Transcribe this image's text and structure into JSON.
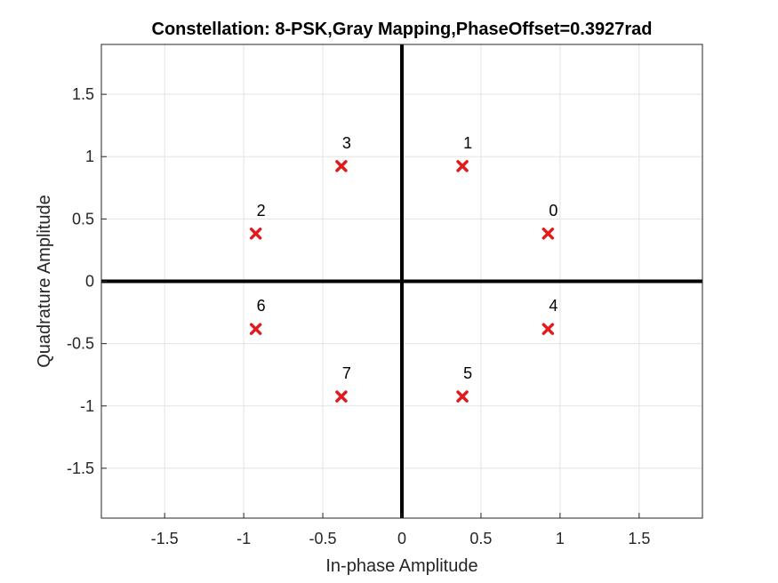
{
  "chart_data": {
    "type": "scatter",
    "title": "Constellation: 8-PSK,Gray Mapping,PhaseOffset=0.3927rad",
    "xlabel": "In-phase Amplitude",
    "ylabel": "Quadrature Amplitude",
    "xlim": [
      -1.9,
      1.9
    ],
    "ylim": [
      -1.9,
      1.9
    ],
    "xticks": [
      -1.5,
      -1,
      -0.5,
      0,
      0.5,
      1,
      1.5
    ],
    "yticks": [
      -1.5,
      -1,
      -0.5,
      0,
      0.5,
      1,
      1.5
    ],
    "xtick_labels": [
      "-1.5",
      "-1",
      "-0.5",
      "0",
      "0.5",
      "1",
      "1.5"
    ],
    "ytick_labels": [
      "-1.5",
      "-1",
      "-0.5",
      "0",
      "0.5",
      "1",
      "1.5"
    ],
    "grid": true,
    "marker": "x",
    "marker_color": "#e31a1c",
    "axis_line_color": "#000000",
    "points": [
      {
        "label": "0",
        "x": 0.9239,
        "y": 0.3827
      },
      {
        "label": "1",
        "x": 0.3827,
        "y": 0.9239
      },
      {
        "label": "3",
        "x": -0.3827,
        "y": 0.9239
      },
      {
        "label": "2",
        "x": -0.9239,
        "y": 0.3827
      },
      {
        "label": "6",
        "x": -0.9239,
        "y": -0.3827
      },
      {
        "label": "7",
        "x": -0.3827,
        "y": -0.9239
      },
      {
        "label": "5",
        "x": 0.3827,
        "y": -0.9239
      },
      {
        "label": "4",
        "x": 0.9239,
        "y": -0.3827
      }
    ]
  }
}
